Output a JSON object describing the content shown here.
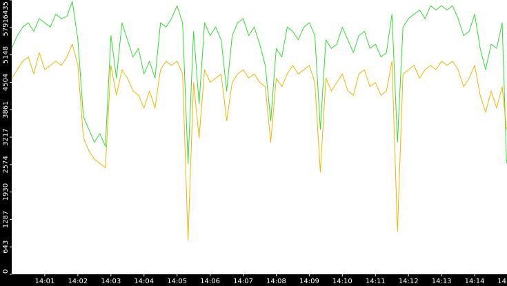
{
  "chart_data": {
    "type": "line",
    "x": [
      "14:00:00",
      "14:00:10",
      "14:00:20",
      "14:00:30",
      "14:00:40",
      "14:00:50",
      "14:01:00",
      "14:01:10",
      "14:01:20",
      "14:01:30",
      "14:01:40",
      "14:01:50",
      "14:02:00",
      "14:02:10",
      "14:02:20",
      "14:02:30",
      "14:02:40",
      "14:02:50",
      "14:03:00",
      "14:03:10",
      "14:03:20",
      "14:03:30",
      "14:03:40",
      "14:03:50",
      "14:04:00",
      "14:04:10",
      "14:04:20",
      "14:04:30",
      "14:04:40",
      "14:04:50",
      "14:05:00",
      "14:05:10",
      "14:05:20",
      "14:05:30",
      "14:05:40",
      "14:05:50",
      "14:06:00",
      "14:06:10",
      "14:06:20",
      "14:06:30",
      "14:06:40",
      "14:06:50",
      "14:07:00",
      "14:07:10",
      "14:07:20",
      "14:07:30",
      "14:07:40",
      "14:07:50",
      "14:08:00",
      "14:08:10",
      "14:08:20",
      "14:08:30",
      "14:08:40",
      "14:08:50",
      "14:09:00",
      "14:09:10",
      "14:09:20",
      "14:09:30",
      "14:09:40",
      "14:09:50",
      "14:10:00",
      "14:10:10",
      "14:10:20",
      "14:10:30",
      "14:10:40",
      "14:10:50",
      "14:11:00",
      "14:11:10",
      "14:11:20",
      "14:11:30",
      "14:11:40",
      "14:11:50",
      "14:12:00",
      "14:12:10",
      "14:12:20",
      "14:12:30",
      "14:12:40",
      "14:12:50",
      "14:13:00",
      "14:13:10",
      "14:13:20",
      "14:13:30",
      "14:13:40",
      "14:13:50",
      "14:14:00",
      "14:14:10",
      "14:14:20",
      "14:14:30",
      "14:14:40",
      "14:14:50",
      "14:14:58"
    ],
    "series": [
      {
        "color": "#2ee02e",
        "values": [
          5300,
          5600,
          5800,
          5900,
          5700,
          6000,
          5900,
          5800,
          6100,
          6000,
          6050,
          6400,
          5500,
          3700,
          3400,
          3100,
          3300,
          3000,
          5600,
          4600,
          5900,
          5500,
          5100,
          5300,
          4700,
          5000,
          4600,
          5900,
          5800,
          6000,
          6300,
          5900,
          2600,
          5700,
          4000,
          5900,
          5600,
          5800,
          5500,
          4300,
          5600,
          5900,
          6000,
          5600,
          5800,
          5400,
          4900,
          3600,
          5300,
          5100,
          5800,
          5700,
          5500,
          5800,
          5900,
          5600,
          3400,
          5500,
          5300,
          5400,
          5800,
          5500,
          5200,
          5600,
          5700,
          5300,
          5400,
          5100,
          5200,
          6100,
          3100,
          5800,
          6000,
          6100,
          6200,
          6000,
          6300,
          6200,
          6300,
          6200,
          6300,
          6000,
          5600,
          5700,
          6100,
          5300,
          4800,
          5400,
          5300,
          5900,
          2600
        ]
      },
      {
        "color": "#f5b400",
        "values": [
          4600,
          4800,
          5000,
          5100,
          4700,
          5200,
          4800,
          4900,
          5000,
          4900,
          5100,
          5400,
          4900,
          3200,
          2900,
          2700,
          2600,
          2500,
          4900,
          4200,
          4800,
          4600,
          4300,
          4200,
          3900,
          4300,
          3900,
          4800,
          5000,
          4900,
          5000,
          4700,
          800,
          4500,
          3200,
          4800,
          4500,
          4600,
          4700,
          3600,
          4500,
          4700,
          4800,
          4600,
          4700,
          4500,
          4400,
          3100,
          4600,
          4400,
          4700,
          4900,
          4700,
          4800,
          4900,
          4500,
          2400,
          4600,
          4300,
          4500,
          4700,
          4300,
          4200,
          4700,
          4800,
          4400,
          4500,
          4200,
          4300,
          5000,
          1000,
          4700,
          4800,
          4900,
          4600,
          4800,
          4900,
          4800,
          5000,
          4900,
          5000,
          4800,
          4400,
          4600,
          4900,
          4200,
          3800,
          4300,
          3900,
          4400,
          3400
        ]
      }
    ],
    "xlim": [
      "14:00:00",
      "14:15:00"
    ],
    "xticks": [
      "14:01",
      "14:02",
      "14:03",
      "14:04",
      "14:05",
      "14:06",
      "14:07",
      "14:08",
      "14:09",
      "14:10",
      "14:11",
      "14:12",
      "14:13",
      "14:14",
      {
        "value": "14:15",
        "label": "14"
      }
    ],
    "ylim": [
      0,
      6435
    ],
    "yticks": [
      0,
      643,
      1287,
      1930,
      2574,
      3217,
      3861,
      4504,
      5148,
      5791,
      6435
    ]
  }
}
